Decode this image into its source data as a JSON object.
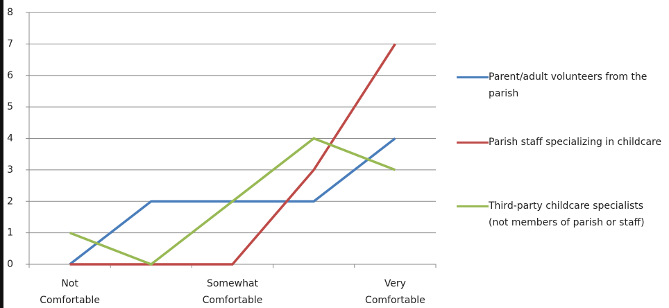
{
  "chart_data": {
    "type": "line",
    "categories": [
      "Not Comfortable",
      null,
      "Somewhat Comfortable",
      null,
      "Very Comfortable"
    ],
    "series": [
      {
        "name": "Parent/adult volunteers from the parish",
        "color": "#4a7ebb",
        "values": [
          0,
          2,
          2,
          2,
          4
        ]
      },
      {
        "name": "Parish staff specializing in childcare",
        "color": "#be4b48",
        "values": [
          0,
          0,
          0,
          3,
          7
        ]
      },
      {
        "name": "Third-party childcare specialists (not members of parish or staff)",
        "color": "#98b954",
        "values": [
          1,
          0,
          2,
          4,
          3
        ]
      }
    ],
    "ylim": [
      0,
      8
    ],
    "yticks": [
      0,
      1,
      2,
      3,
      4,
      5,
      6,
      7,
      8
    ],
    "grid": true,
    "legend": "right"
  }
}
